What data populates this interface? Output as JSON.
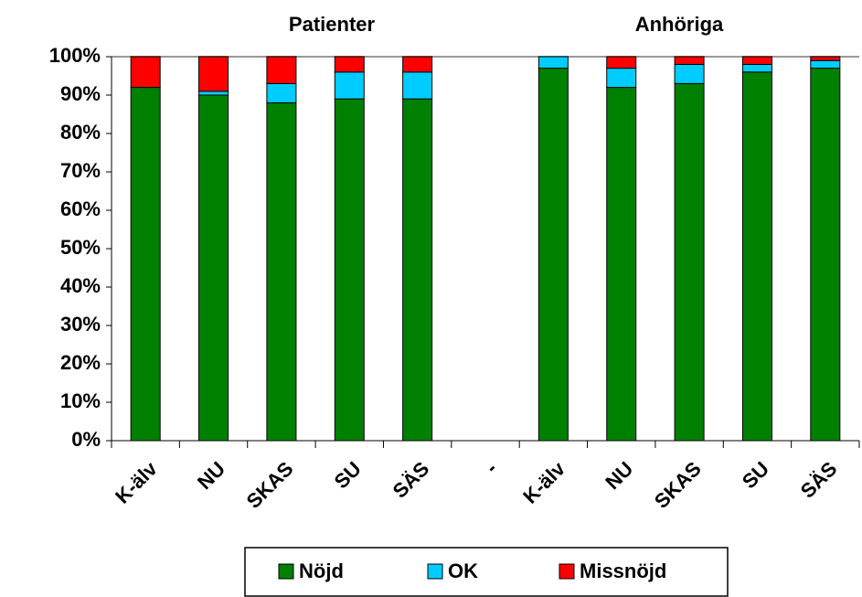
{
  "chart_data": {
    "type": "stacked_bar",
    "annotations": [
      "Patienter",
      "Anhöriga"
    ],
    "categories": [
      "K-älv",
      "NU",
      "SKAS",
      "SU",
      "SÄS",
      "-",
      "K-älv",
      "NU",
      "SKAS",
      "SU",
      "SÄS"
    ],
    "series": [
      {
        "name": "Nöjd",
        "color": "#008000",
        "values": [
          92,
          90,
          88,
          89,
          89,
          null,
          97,
          92,
          93,
          96,
          97
        ]
      },
      {
        "name": "OK",
        "color": "#00ccff",
        "values": [
          0,
          1,
          5,
          7,
          7,
          null,
          3,
          5,
          5,
          2,
          2
        ]
      },
      {
        "name": "Missnöjd",
        "color": "#ff0000",
        "values": [
          8,
          9,
          7,
          4,
          4,
          null,
          0,
          3,
          2,
          2,
          1
        ]
      }
    ],
    "ylim": [
      0,
      100
    ],
    "yticks": [
      {
        "value": 0,
        "label": "0%"
      },
      {
        "value": 10,
        "label": "10%"
      },
      {
        "value": 20,
        "label": "20%"
      },
      {
        "value": 30,
        "label": "30%"
      },
      {
        "value": 40,
        "label": "40%"
      },
      {
        "value": 50,
        "label": "50%"
      },
      {
        "value": 60,
        "label": "60%"
      },
      {
        "value": 70,
        "label": "70%"
      },
      {
        "value": 80,
        "label": "80%"
      },
      {
        "value": 90,
        "label": "90%"
      },
      {
        "value": 100,
        "label": "100%"
      }
    ],
    "grid": false
  }
}
